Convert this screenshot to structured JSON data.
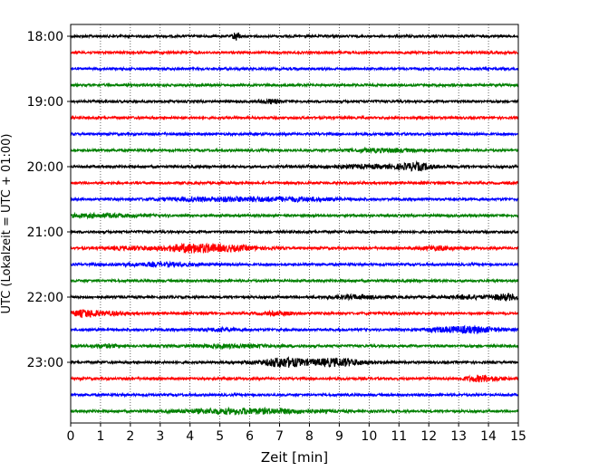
{
  "chart_data": {
    "type": "line",
    "title": "",
    "xlabel": "Zeit  [min]",
    "ylabel": "UTC (Lokalzeit = UTC + 01:00)",
    "xlim": [
      0,
      15
    ],
    "x_ticks": [
      0,
      1,
      2,
      3,
      4,
      5,
      6,
      7,
      8,
      9,
      10,
      11,
      12,
      13,
      14,
      15
    ],
    "y_ticks": [
      "18:00",
      "19:00",
      "20:00",
      "21:00",
      "22:00",
      "23:00"
    ],
    "y_tick_traces": [
      0,
      4,
      8,
      12,
      16,
      20
    ],
    "grid_x": true,
    "legend": "none",
    "trace_colors": [
      "#000000",
      "#ff0000",
      "#0000ff",
      "#008000"
    ],
    "series": [
      {
        "start": "18:00",
        "color": "#000000",
        "events": [
          [
            5.55,
            0.12,
            4.5
          ]
        ]
      },
      {
        "start": "18:15",
        "color": "#ff0000",
        "events": []
      },
      {
        "start": "18:30",
        "color": "#0000ff",
        "events": []
      },
      {
        "start": "18:45",
        "color": "#008000",
        "events": []
      },
      {
        "start": "19:00",
        "color": "#000000",
        "events": [
          [
            6.7,
            0.3,
            2.0
          ]
        ]
      },
      {
        "start": "19:15",
        "color": "#ff0000",
        "events": []
      },
      {
        "start": "19:30",
        "color": "#0000ff",
        "events": []
      },
      {
        "start": "19:45",
        "color": "#008000",
        "events": [
          [
            10.5,
            1.2,
            1.5
          ]
        ]
      },
      {
        "start": "20:00",
        "color": "#000000",
        "events": [
          [
            11.6,
            0.5,
            3.0
          ],
          [
            10.0,
            2.0,
            1.4
          ]
        ]
      },
      {
        "start": "20:15",
        "color": "#ff0000",
        "events": []
      },
      {
        "start": "20:30",
        "color": "#0000ff",
        "events": [
          [
            5.0,
            2.0,
            1.8
          ],
          [
            7.5,
            1.5,
            1.4
          ]
        ]
      },
      {
        "start": "20:45",
        "color": "#008000",
        "events": [
          [
            1.0,
            1.5,
            1.4
          ]
        ]
      },
      {
        "start": "21:00",
        "color": "#000000",
        "events": []
      },
      {
        "start": "21:15",
        "color": "#ff0000",
        "events": [
          [
            4.0,
            0.8,
            3.5
          ],
          [
            5.2,
            1.2,
            2.5
          ],
          [
            2.2,
            1.0,
            1.5
          ],
          [
            12.3,
            0.6,
            1.8
          ]
        ]
      },
      {
        "start": "21:30",
        "color": "#0000ff",
        "events": [
          [
            3.0,
            1.5,
            1.4
          ]
        ]
      },
      {
        "start": "21:45",
        "color": "#008000",
        "events": []
      },
      {
        "start": "22:00",
        "color": "#000000",
        "events": [
          [
            14.6,
            0.5,
            3.0
          ],
          [
            9.5,
            1.0,
            1.6
          ],
          [
            13.3,
            0.5,
            1.8
          ]
        ]
      },
      {
        "start": "22:15",
        "color": "#ff0000",
        "events": [
          [
            0.5,
            0.5,
            3.5
          ],
          [
            1.5,
            0.5,
            1.4
          ],
          [
            7.0,
            0.6,
            1.4
          ]
        ]
      },
      {
        "start": "22:30",
        "color": "#0000ff",
        "events": [
          [
            13.2,
            1.2,
            3.0
          ],
          [
            5.0,
            0.6,
            1.4
          ]
        ]
      },
      {
        "start": "22:45",
        "color": "#008000",
        "events": [
          [
            5.5,
            1.5,
            1.4
          ],
          [
            1.2,
            0.5,
            1.3
          ]
        ]
      },
      {
        "start": "23:00",
        "color": "#000000",
        "events": [
          [
            7.1,
            0.6,
            3.5
          ],
          [
            9.0,
            0.8,
            2.6
          ],
          [
            8.0,
            2.0,
            1.6
          ]
        ]
      },
      {
        "start": "23:15",
        "color": "#ff0000",
        "events": [
          [
            13.8,
            0.6,
            3.0
          ]
        ]
      },
      {
        "start": "23:30",
        "color": "#0000ff",
        "events": []
      },
      {
        "start": "23:45",
        "color": "#008000",
        "events": [
          [
            5.0,
            1.5,
            2.0
          ],
          [
            7.0,
            1.5,
            1.8
          ]
        ]
      }
    ]
  }
}
